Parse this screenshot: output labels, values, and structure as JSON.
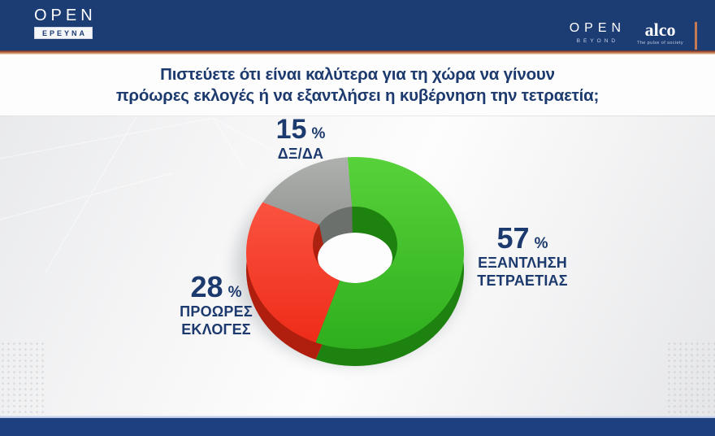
{
  "header": {
    "channel_logo": "OPEN",
    "channel_logo_sub": "ΕΡΕΥΝΑ",
    "right_logo": "OPEN",
    "right_logo_sub": "BEYOND",
    "pollster_logo": "alco",
    "pollster_tagline": "The pulse of society"
  },
  "title": {
    "line1": "Πιστεύετε ότι είναι καλύτερα για τη χώρα να γίνουν",
    "line2": "πρόωρες εκλογές ή να εξαντλήσει η κυβέρνηση την τετραετία;"
  },
  "chart_data": {
    "type": "pie",
    "subtype": "donut-3d",
    "title": "Πιστεύετε ότι είναι καλύτερα για τη χώρα να γίνουν πρόωρες εκλογές ή να εξαντλήσει η κυβέρνηση την τετραετία;",
    "unit": "%",
    "total": 100,
    "direction": "clockwise",
    "start_angle_deg": -4,
    "legend": "none",
    "labels_position": "around",
    "segments": [
      {
        "label": "ΕΞΑΝΤΛΗΣΗ ΤΕΤΡΑΕΤΙΑΣ",
        "value": 57,
        "color": "#2fae1e",
        "color_light": "#58d23a",
        "color_dark": "#1d820f"
      },
      {
        "label": "ΠΡΟΩΡΕΣ ΕΚΛΟΓΕΣ",
        "value": 28,
        "color": "#ee2c19",
        "color_light": "#fa5340",
        "color_dark": "#b01e0d"
      },
      {
        "label": "ΔΞ/ΔΑ",
        "value": 15,
        "color": "#959894",
        "color_light": "#aeb1ae",
        "color_dark": "#6d706d"
      }
    ]
  },
  "callouts": {
    "dk": {
      "value": "15",
      "unit": "%",
      "line1": "ΔΞ/ΔΑ",
      "line2": ""
    },
    "exhaust": {
      "value": "57",
      "unit": "%",
      "line1": "ΕΞΑΝΤΛΗΣΗ",
      "line2": "ΤΕΤΡΑΕΤΙΑΣ"
    },
    "early": {
      "value": "28",
      "unit": "%",
      "line1": "ΠΡΟΩΡΕΣ",
      "line2": "ΕΚΛΟΓΕΣ"
    }
  },
  "theme": {
    "header_navy": "#1c3c74",
    "footer_navy": "#1d4080",
    "text_navy": "#1d3a6e",
    "accent_strip": "#d68c62",
    "background_light": "#f0f0f2"
  }
}
